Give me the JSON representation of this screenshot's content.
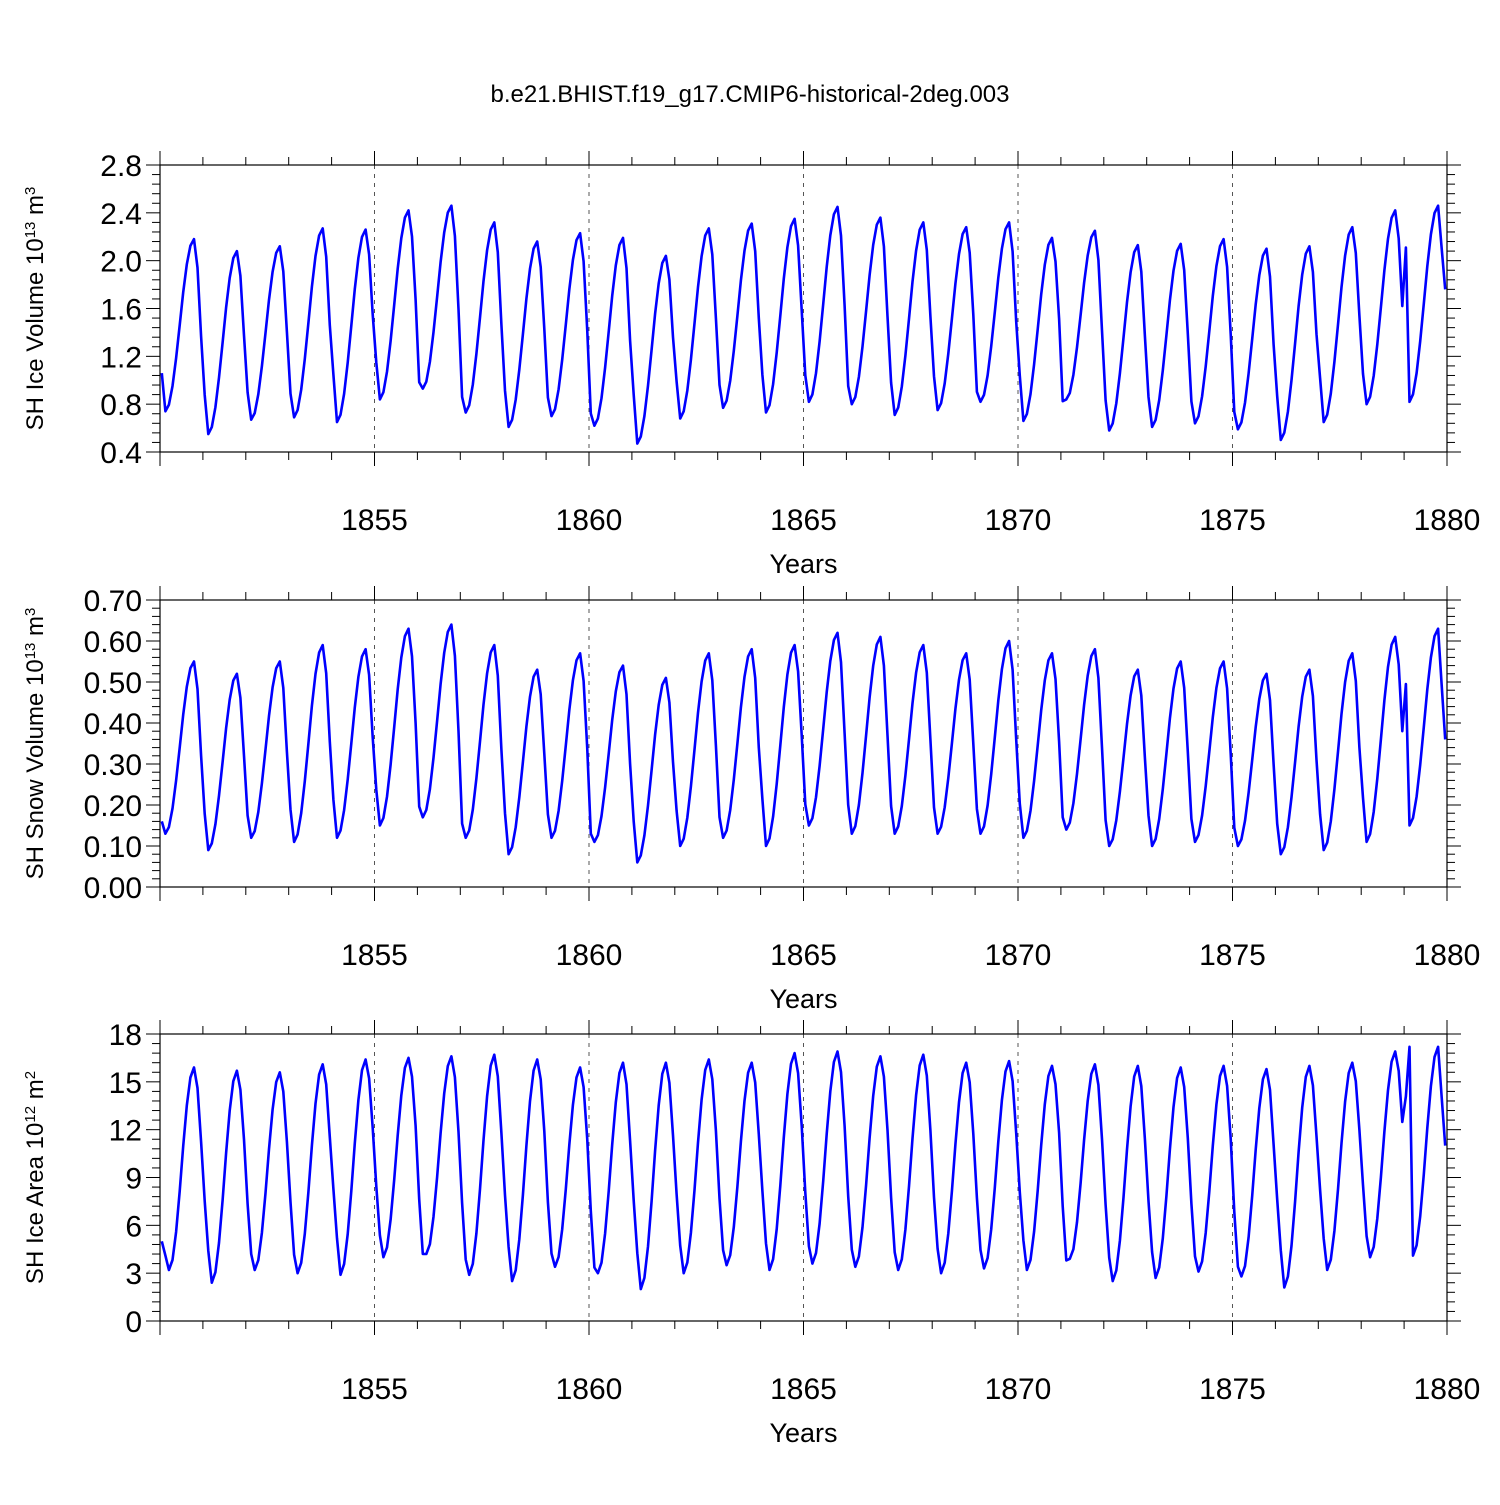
{
  "title": "b.e21.BHIST.f19_g17.CMIP6-historical-2deg.003",
  "line_color": "#0000ff",
  "chart_data": [
    {
      "type": "line",
      "name": "sh-ice-volume",
      "ylabel": {
        "prefix": "SH Ice Volume 10",
        "exp": "13",
        "unit": " m",
        "unit_exp": "3"
      },
      "xlabel": "Years",
      "xlim": [
        1850.0,
        1880.0
      ],
      "ylim": [
        0.4,
        2.8
      ],
      "yticks": [
        0.4,
        0.8,
        1.2,
        1.6,
        2.0,
        2.4,
        2.8
      ],
      "ytick_labels": [
        "0.4",
        "0.8",
        "1.2",
        "1.6",
        "2.0",
        "2.4",
        "2.8"
      ],
      "xticks": [
        1855,
        1860,
        1865,
        1870,
        1875,
        1880
      ],
      "xtick_labels": [
        "1855",
        "1860",
        "1865",
        "1870",
        "1875",
        "1880"
      ],
      "grid_x": [
        1855,
        1860,
        1865,
        1870,
        1875
      ],
      "season": {
        "min_month": 1,
        "max_month": 9
      },
      "series_start": 1.06,
      "series_end": 1.76,
      "annual_min": [
        0.74,
        0.55,
        0.67,
        0.69,
        0.65,
        0.84,
        0.93,
        0.73,
        0.61,
        0.7,
        0.62,
        0.47,
        0.68,
        0.77,
        0.73,
        0.82,
        0.8,
        0.71,
        0.75,
        0.82,
        0.66,
        0.84,
        0.58,
        0.61,
        0.64,
        0.59,
        0.5,
        0.65,
        0.8,
        0.82
      ],
      "annual_max": [
        2.18,
        2.08,
        2.12,
        2.27,
        2.26,
        2.42,
        2.46,
        2.32,
        2.16,
        2.23,
        2.19,
        2.04,
        2.27,
        2.31,
        2.35,
        2.45,
        2.36,
        2.32,
        2.28,
        2.32,
        2.19,
        2.25,
        2.13,
        2.14,
        2.18,
        2.1,
        2.12,
        2.28,
        2.42,
        2.46
      ]
    },
    {
      "type": "line",
      "name": "sh-snow-volume",
      "ylabel": {
        "prefix": "SH Snow Volume 10",
        "exp": "13",
        "unit": " m",
        "unit_exp": "3"
      },
      "xlabel": "Years",
      "xlim": [
        1850.0,
        1880.0
      ],
      "ylim": [
        0.0,
        0.7
      ],
      "yticks": [
        0.0,
        0.1,
        0.2,
        0.3,
        0.4,
        0.5,
        0.6,
        0.7
      ],
      "ytick_labels": [
        "0.00",
        "0.10",
        "0.20",
        "0.30",
        "0.40",
        "0.50",
        "0.60",
        "0.70"
      ],
      "xticks": [
        1855,
        1860,
        1865,
        1870,
        1875,
        1880
      ],
      "xtick_labels": [
        "1855",
        "1860",
        "1865",
        "1870",
        "1875",
        "1880"
      ],
      "grid_x": [
        1855,
        1860,
        1865,
        1870,
        1875
      ],
      "season": {
        "min_month": 1,
        "max_month": 9
      },
      "series_start": 0.16,
      "series_end": 0.36,
      "annual_min": [
        0.13,
        0.09,
        0.12,
        0.11,
        0.12,
        0.15,
        0.17,
        0.12,
        0.08,
        0.12,
        0.11,
        0.06,
        0.1,
        0.12,
        0.1,
        0.15,
        0.13,
        0.13,
        0.13,
        0.13,
        0.12,
        0.14,
        0.1,
        0.1,
        0.11,
        0.1,
        0.08,
        0.09,
        0.11,
        0.15
      ],
      "annual_max": [
        0.55,
        0.52,
        0.55,
        0.59,
        0.58,
        0.63,
        0.64,
        0.59,
        0.53,
        0.57,
        0.54,
        0.51,
        0.57,
        0.58,
        0.59,
        0.62,
        0.61,
        0.59,
        0.57,
        0.6,
        0.57,
        0.58,
        0.53,
        0.55,
        0.55,
        0.52,
        0.53,
        0.57,
        0.61,
        0.63
      ]
    },
    {
      "type": "line",
      "name": "sh-ice-area",
      "ylabel": {
        "prefix": "SH Ice Area 10",
        "exp": "12",
        "unit": " m",
        "unit_exp": "2"
      },
      "xlabel": "Years",
      "xlim": [
        1850.0,
        1880.0
      ],
      "ylim": [
        0,
        18
      ],
      "yticks": [
        0,
        3,
        6,
        9,
        12,
        15,
        18
      ],
      "ytick_labels": [
        "0",
        "3",
        "6",
        "9",
        "12",
        "15",
        "18"
      ],
      "xticks": [
        1855,
        1860,
        1865,
        1870,
        1875,
        1880
      ],
      "xtick_labels": [
        "1855",
        "1860",
        "1865",
        "1870",
        "1875",
        "1880"
      ],
      "grid_x": [
        1855,
        1860,
        1865,
        1870,
        1875
      ],
      "season": {
        "min_month": 2,
        "max_month": 9
      },
      "series_start": 5.0,
      "series_end": 11.0,
      "annual_min": [
        3.2,
        2.4,
        3.2,
        3.0,
        2.9,
        4.0,
        4.2,
        2.9,
        2.5,
        3.4,
        3.0,
        2.0,
        3.0,
        3.5,
        3.2,
        3.6,
        3.4,
        3.2,
        3.0,
        3.3,
        3.2,
        3.9,
        2.5,
        2.7,
        3.1,
        2.8,
        2.1,
        3.2,
        4.0,
        4.1
      ],
      "annual_max": [
        15.9,
        15.7,
        15.6,
        16.1,
        16.4,
        16.5,
        16.6,
        16.7,
        16.4,
        15.9,
        16.2,
        16.2,
        16.4,
        16.2,
        16.8,
        16.9,
        16.6,
        16.7,
        16.2,
        16.3,
        16.0,
        16.1,
        16.0,
        15.9,
        16.0,
        15.8,
        16.0,
        16.2,
        16.9,
        17.2
      ]
    }
  ]
}
